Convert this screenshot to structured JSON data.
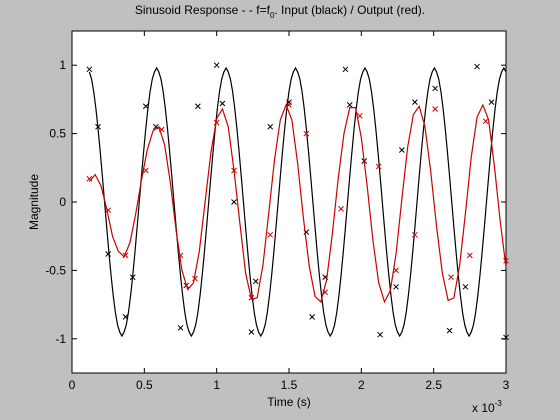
{
  "figure": {
    "background": "#c0c0c0",
    "axes_background": "#ffffff"
  },
  "chart_data": {
    "type": "line",
    "title": "Sinusoid Response - - f=f",
    "title_subscript": "0",
    "title_suffix": ". Input (black) /  Output (red).",
    "xlabel": "Time (s)",
    "ylabel": "Magnitude",
    "x_exponent_base": "x 10",
    "x_exponent_power": "-3",
    "xlim": [
      0,
      3
    ],
    "ylim": [
      -1.25,
      1.25
    ],
    "xticks": [
      0,
      0.5,
      1,
      1.5,
      2,
      2.5,
      3
    ],
    "xtick_labels": [
      "0",
      "0.5",
      "1",
      "1.5",
      "2",
      "2.5",
      "3"
    ],
    "yticks": [
      -1,
      -0.5,
      0,
      0.5,
      1
    ],
    "ytick_labels": [
      "-1",
      "-0.5",
      "0",
      "0.5",
      "1"
    ],
    "grid": false,
    "series": [
      {
        "color": "#000000",
        "marker": "x",
        "frequency": 2.5,
        "amplitude": 1,
        "curve": {
          "x": [
            0.12,
            0.135,
            0.15,
            0.165,
            0.18,
            0.195,
            0.21,
            0.225,
            0.24,
            0.255,
            0.27,
            0.285,
            0.3,
            0.315,
            0.33,
            0.345,
            0.36,
            0.375,
            0.39,
            0.405,
            0.42,
            0.435,
            0.45,
            0.465,
            0.48,
            0.495,
            0.51,
            0.525,
            0.54,
            0.555,
            0.57,
            0.585,
            0.6,
            0.615,
            0.63,
            0.645,
            0.66,
            0.675,
            0.69,
            0.705,
            0.72,
            0.735,
            0.75,
            0.765,
            0.78,
            0.795,
            0.81,
            0.825,
            0.84,
            0.855,
            0.87,
            0.885,
            0.9,
            0.915,
            0.93,
            0.945,
            0.96,
            0.975,
            0.99,
            1.005,
            1.02,
            1.035,
            1.05,
            1.065,
            1.08,
            1.095,
            1.11,
            1.125,
            1.14,
            1.155,
            1.17,
            1.185,
            1.2,
            1.215,
            1.23,
            1.245,
            1.26,
            1.275,
            1.29,
            1.305,
            1.32,
            1.335,
            1.35,
            1.365,
            1.38,
            1.395,
            1.41,
            1.425,
            1.44,
            1.455,
            1.47,
            1.485,
            1.5,
            1.515,
            1.53,
            1.545,
            1.56,
            1.575,
            1.59,
            1.605,
            1.62,
            1.635,
            1.65,
            1.665,
            1.68,
            1.695,
            1.71,
            1.725,
            1.74,
            1.755,
            1.77,
            1.785,
            1.8,
            1.815,
            1.83,
            1.845,
            1.86,
            1.875,
            1.89,
            1.905,
            1.92,
            1.935,
            1.95,
            1.965,
            1.98,
            1.995,
            2.01,
            2.025,
            2.04,
            2.055,
            2.07,
            2.085,
            2.1,
            2.115,
            2.13,
            2.145,
            2.16,
            2.175,
            2.19,
            2.205,
            2.22,
            2.235,
            2.25,
            2.265,
            2.28,
            2.295,
            2.31,
            2.325,
            2.34,
            2.355,
            2.37,
            2.385,
            2.4,
            2.415,
            2.43,
            2.445,
            2.46,
            2.475,
            2.49,
            2.505,
            2.52,
            2.535,
            2.55,
            2.565,
            2.58,
            2.595,
            2.61,
            2.625,
            2.64,
            2.655,
            2.67,
            2.685,
            2.7,
            2.715,
            2.73,
            2.745,
            2.76,
            2.775,
            2.79,
            2.805,
            2.82,
            2.835,
            2.85,
            2.865,
            2.88,
            2.895,
            2.91,
            2.925,
            2.94,
            2.955,
            2.97,
            2.985,
            3.0
          ],
          "y": [
            0.951,
            0.899,
            0.809,
            0.685,
            0.536,
            0.368,
            0.187,
            0.0,
            -0.187,
            -0.368,
            -0.536,
            -0.685,
            -0.809,
            -0.899,
            -0.951,
            -0.98,
            -0.951,
            -0.899,
            -0.809,
            -0.685,
            -0.536,
            -0.368,
            -0.187,
            0.0,
            0.187,
            0.368,
            0.536,
            0.685,
            0.809,
            0.899,
            0.951,
            0.98,
            0.951,
            0.899,
            0.809,
            0.685,
            0.536,
            0.368,
            0.187,
            0.0,
            -0.187,
            -0.368,
            -0.536,
            -0.685,
            -0.809,
            -0.899,
            -0.951,
            -0.98,
            -0.951,
            -0.899,
            -0.809,
            -0.685,
            -0.536,
            -0.368,
            -0.187,
            0.0,
            0.187,
            0.368,
            0.536,
            0.685,
            0.809,
            0.899,
            0.951,
            0.98,
            0.951,
            0.899,
            0.809,
            0.685,
            0.536,
            0.368,
            0.187,
            0.0,
            -0.187,
            -0.368,
            -0.536,
            -0.685,
            -0.809,
            -0.899,
            -0.951,
            -0.98,
            -0.951,
            -0.899,
            -0.809,
            -0.685,
            -0.536,
            -0.368,
            -0.187,
            0.0,
            0.187,
            0.368,
            0.536,
            0.685,
            0.809,
            0.899,
            0.951,
            0.98,
            0.951,
            0.899,
            0.809,
            0.685,
            0.536,
            0.368,
            0.187,
            0.0,
            -0.187,
            -0.368,
            -0.536,
            -0.685,
            -0.809,
            -0.899,
            -0.951,
            -0.98,
            -0.951,
            -0.899,
            -0.809,
            -0.685,
            -0.536,
            -0.368,
            -0.187,
            0.0,
            0.187,
            0.368,
            0.536,
            0.685,
            0.809,
            0.899,
            0.951,
            0.98,
            0.951,
            0.899,
            0.809,
            0.685,
            0.536,
            0.368,
            0.187,
            0.0,
            -0.187,
            -0.368,
            -0.536,
            -0.685,
            -0.809,
            -0.899,
            -0.951,
            -0.98,
            -0.951,
            -0.899,
            -0.809,
            -0.685,
            -0.536,
            -0.368,
            -0.187,
            0.0,
            0.187,
            0.368,
            0.536,
            0.685,
            0.809,
            0.899,
            0.951,
            0.98,
            0.951,
            0.899,
            0.809,
            0.685,
            0.536,
            0.368,
            0.187,
            0.0,
            -0.187,
            -0.368,
            -0.536,
            -0.685,
            -0.809,
            -0.899,
            -0.951,
            -0.98,
            -0.951,
            -0.899,
            -0.809,
            -0.685,
            -0.536,
            -0.368,
            -0.187,
            0.0,
            0.187,
            0.368,
            0.536,
            0.685,
            0.809,
            0.899,
            0.951,
            0.98,
            0.951
          ]
        },
        "markers": {
          "x": [
            0.12,
            0.18,
            0.25,
            0.37,
            0.42,
            0.51,
            0.58,
            0.75,
            0.79,
            0.87,
            1.0,
            1.04,
            1.12,
            1.24,
            1.27,
            1.37,
            1.5,
            1.62,
            1.66,
            1.75,
            1.89,
            1.92,
            2.02,
            2.13,
            2.24,
            2.28,
            2.37,
            2.51,
            2.61,
            2.72,
            2.8,
            2.9,
            3.0
          ],
          "y": [
            0.97,
            0.55,
            -0.38,
            -0.84,
            -0.55,
            0.7,
            0.55,
            -0.92,
            -0.61,
            0.7,
            1.0,
            0.72,
            0.0,
            -0.95,
            -0.58,
            0.55,
            0.73,
            -0.22,
            -0.84,
            -0.55,
            0.97,
            0.71,
            0.3,
            -0.97,
            -0.62,
            0.38,
            0.73,
            0.83,
            -0.94,
            -0.62,
            0.99,
            0.73,
            -0.99
          ]
        }
      },
      {
        "color": "#cc0000",
        "marker": "x",
        "curve": {
          "x": [
            0.12,
            0.16,
            0.2,
            0.24,
            0.28,
            0.32,
            0.36,
            0.4,
            0.44,
            0.48,
            0.52,
            0.56,
            0.6,
            0.64,
            0.68,
            0.72,
            0.76,
            0.8,
            0.84,
            0.88,
            0.92,
            0.96,
            1.0,
            1.04,
            1.08,
            1.12,
            1.16,
            1.2,
            1.24,
            1.28,
            1.32,
            1.36,
            1.4,
            1.44,
            1.48,
            1.52,
            1.56,
            1.6,
            1.64,
            1.68,
            1.72,
            1.76,
            1.8,
            1.84,
            1.88,
            1.92,
            1.96,
            2.0,
            2.04,
            2.08,
            2.12,
            2.16,
            2.2,
            2.24,
            2.28,
            2.32,
            2.36,
            2.4,
            2.44,
            2.48,
            2.52,
            2.56,
            2.6,
            2.64,
            2.68,
            2.72,
            2.76,
            2.8,
            2.84,
            2.88,
            2.92,
            2.96,
            3.0
          ],
          "y": [
            0.15,
            0.2,
            0.12,
            -0.05,
            -0.25,
            -0.36,
            -0.4,
            -0.3,
            -0.09,
            0.16,
            0.38,
            0.52,
            0.55,
            0.42,
            0.14,
            -0.21,
            -0.5,
            -0.64,
            -0.59,
            -0.36,
            0.0,
            0.36,
            0.61,
            0.68,
            0.55,
            0.23,
            -0.15,
            -0.52,
            -0.71,
            -0.7,
            -0.46,
            -0.08,
            0.31,
            0.6,
            0.71,
            0.6,
            0.28,
            -0.12,
            -0.47,
            -0.69,
            -0.73,
            -0.57,
            -0.23,
            0.17,
            0.5,
            0.69,
            0.69,
            0.47,
            0.12,
            -0.28,
            -0.59,
            -0.73,
            -0.65,
            -0.38,
            0.02,
            0.4,
            0.64,
            0.7,
            0.55,
            0.22,
            -0.18,
            -0.52,
            -0.72,
            -0.7,
            -0.46,
            -0.08,
            0.33,
            0.62,
            0.71,
            0.6,
            0.26,
            -0.14,
            -0.48
          ]
        },
        "markers": {
          "x": [
            0.12,
            0.25,
            0.37,
            0.51,
            0.62,
            0.75,
            0.85,
            1.0,
            1.12,
            1.24,
            1.37,
            1.5,
            1.62,
            1.75,
            1.86,
            1.99,
            2.12,
            2.24,
            2.37,
            2.51,
            2.62,
            2.75,
            2.86,
            3.0
          ],
          "y": [
            0.17,
            -0.06,
            -0.39,
            0.23,
            0.53,
            -0.39,
            -0.56,
            0.58,
            0.23,
            -0.7,
            -0.24,
            0.71,
            0.5,
            -0.66,
            -0.05,
            0.63,
            0.26,
            -0.5,
            -0.24,
            0.68,
            -0.55,
            -0.39,
            0.59,
            -0.43
          ]
        }
      }
    ]
  }
}
